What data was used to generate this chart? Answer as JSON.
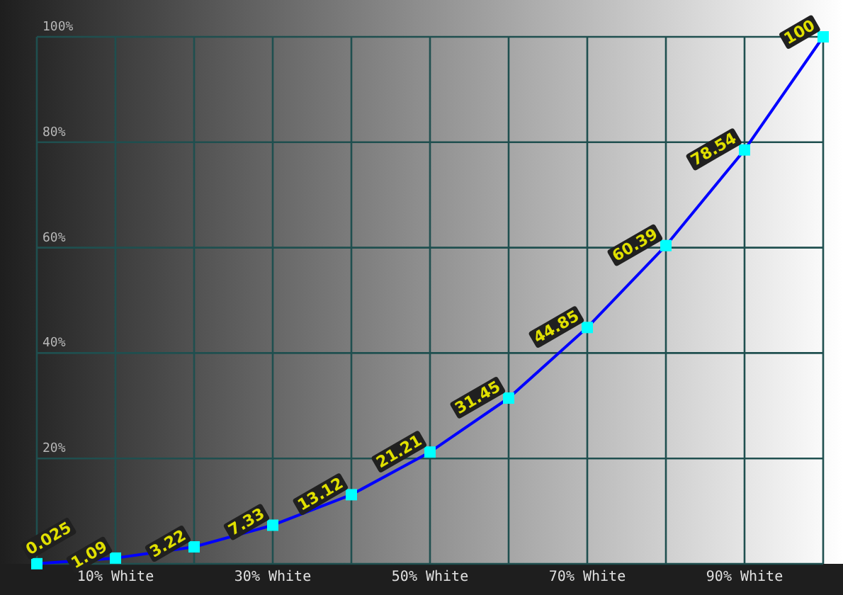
{
  "chart_data": {
    "type": "line",
    "x": [
      0,
      10,
      20,
      30,
      40,
      50,
      60,
      70,
      80,
      90,
      100
    ],
    "series": [
      {
        "color": "#0000ff",
        "values": [
          0.025,
          1.09,
          3.22,
          7.33,
          13.12,
          21.21,
          31.45,
          44.85,
          60.39,
          78.54,
          100
        ],
        "value_labels": [
          "0.025",
          "1.09",
          "3.22",
          "7.33",
          "13.12",
          "21.21",
          "31.45",
          "44.85",
          "60.39",
          "78.54",
          "100"
        ]
      }
    ],
    "xlim": [
      0,
      100
    ],
    "ylim": [
      0,
      100
    ],
    "xticks": [
      {
        "value": 0,
        "label": null
      },
      {
        "value": 10,
        "label": "10% White"
      },
      {
        "value": 20,
        "label": null
      },
      {
        "value": 30,
        "label": "30% White"
      },
      {
        "value": 40,
        "label": null
      },
      {
        "value": 50,
        "label": "50% White"
      },
      {
        "value": 60,
        "label": null
      },
      {
        "value": 70,
        "label": "70% White"
      },
      {
        "value": 80,
        "label": null
      },
      {
        "value": 90,
        "label": "90% White"
      },
      {
        "value": 100,
        "label": null
      }
    ],
    "yticks": [
      {
        "value": 0,
        "label": null
      },
      {
        "value": 20,
        "label": "20%"
      },
      {
        "value": 40,
        "label": "40%"
      },
      {
        "value": 60,
        "label": "60%"
      },
      {
        "value": 80,
        "label": "80%"
      },
      {
        "value": 100,
        "label": "100%"
      }
    ],
    "grid": true,
    "marker": "square",
    "line_style": "solid"
  }
}
